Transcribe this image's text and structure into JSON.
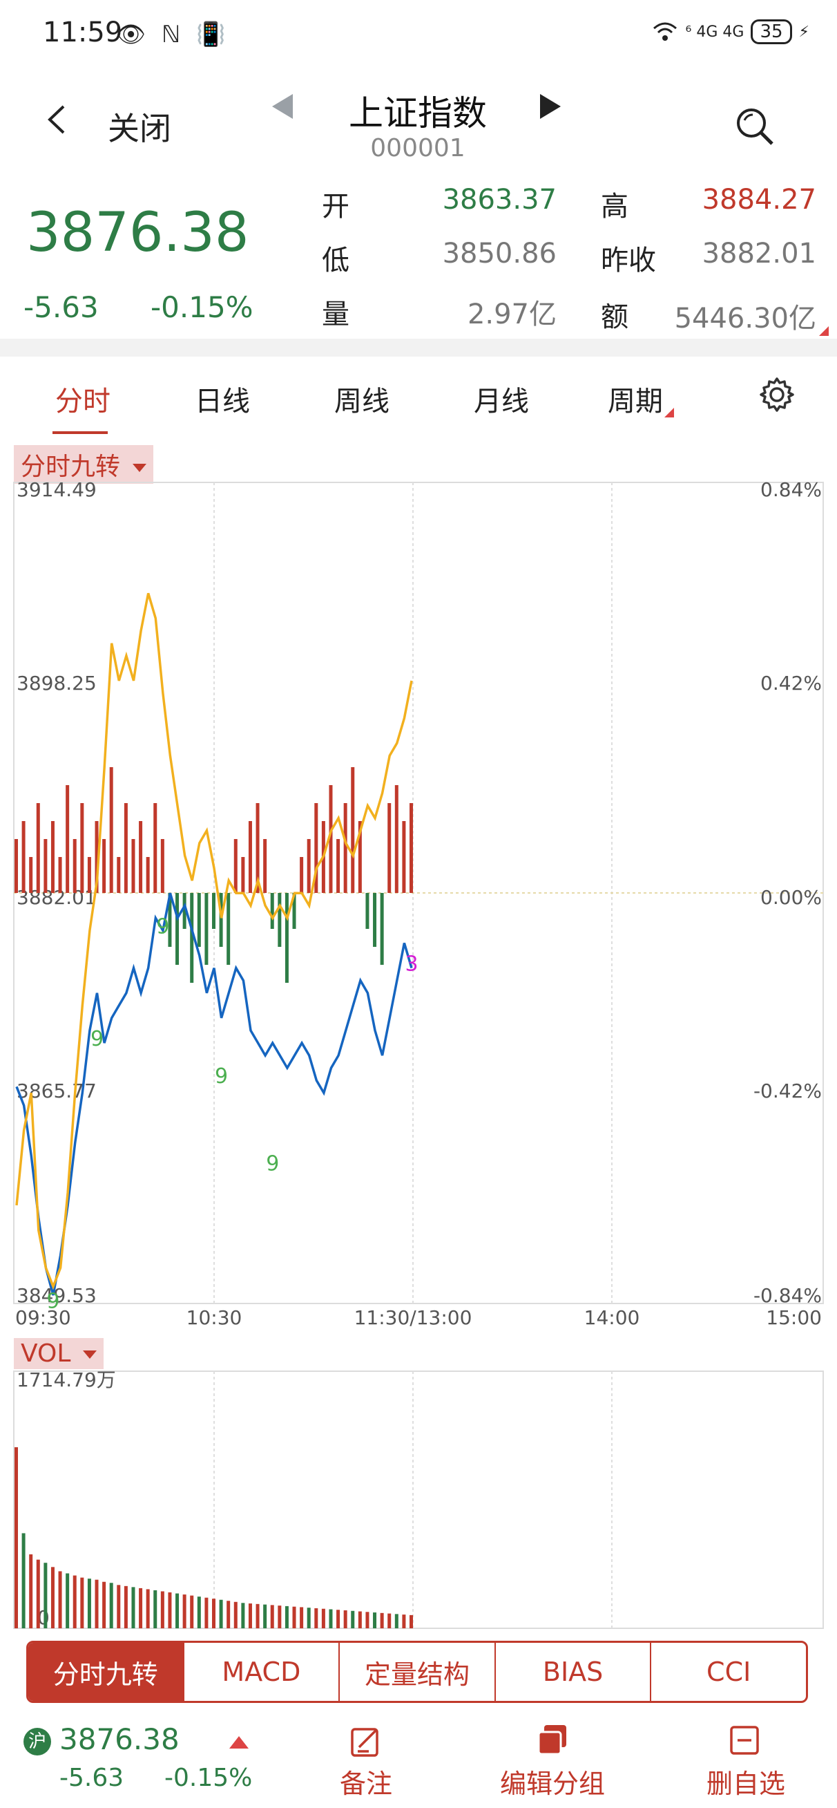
{
  "status_bar": {
    "time": "11:59",
    "left_icons": "👁 ℕ 📳",
    "signal": "⁶ 4G 4G",
    "battery": "35"
  },
  "header": {
    "back_label": "关闭",
    "title": "上证指数",
    "code": "000001"
  },
  "quote": {
    "price": "3876.38",
    "change": "-5.63",
    "change_pct": "-0.15%",
    "open_label": "开",
    "open": "3863.37",
    "high_label": "高",
    "high": "3884.27",
    "low_label": "低",
    "low": "3850.86",
    "prev_label": "昨收",
    "prev": "3882.01",
    "vol_label": "量",
    "vol": "2.97亿",
    "amt_label": "额",
    "amt": "5446.30亿"
  },
  "tabs": [
    "分时",
    "日线",
    "周线",
    "月线",
    "周期"
  ],
  "indicator_chip": "分时九转",
  "vol_chip": "VOL",
  "chart_data": {
    "type": "line",
    "left_ticks": [
      "3914.49",
      "3898.25",
      "3882.01",
      "3865.77",
      "3849.53"
    ],
    "right_ticks": [
      "0.84%",
      "0.42%",
      "0.00%",
      "-0.42%",
      "-0.84%"
    ],
    "x_ticks": [
      "09:30",
      "10:30",
      "11:30/13:00",
      "14:00",
      "15:00"
    ],
    "ylim": [
      3849.53,
      3914.49
    ],
    "prev_close": 3882.01,
    "series": [
      {
        "color": "#1565c0",
        "values": [
          3866.5,
          3865,
          3861,
          3856,
          3852,
          3849.8,
          3853,
          3857,
          3862,
          3866,
          3871,
          3874,
          3870,
          3872,
          3873,
          3874,
          3876,
          3874,
          3876,
          3880,
          3879,
          3882,
          3880,
          3881,
          3879,
          3877,
          3874,
          3876,
          3872,
          3874,
          3876,
          3875,
          3871,
          3870,
          3869,
          3870,
          3869,
          3868,
          3869,
          3870,
          3869,
          3867,
          3866,
          3868,
          3869,
          3871,
          3873,
          3875,
          3874,
          3871,
          3869,
          3872,
          3875,
          3878,
          3876
        ]
      },
      {
        "color": "#f2b01e",
        "values": [
          3857,
          3863,
          3866,
          3855,
          3852,
          3850.5,
          3852,
          3858,
          3866,
          3873,
          3879,
          3883,
          3892,
          3902,
          3899,
          3901,
          3899,
          3903,
          3906,
          3904,
          3898,
          3893,
          3889,
          3885,
          3883,
          3886,
          3887,
          3884,
          3880,
          3883,
          3882,
          3882,
          3881,
          3883,
          3881,
          3880,
          3881,
          3880,
          3882,
          3882,
          3881,
          3884,
          3885,
          3887,
          3888,
          3886,
          3885,
          3887,
          3889,
          3888,
          3890,
          3893,
          3894,
          3896,
          3899
        ]
      }
    ],
    "buy_sell_bars": [
      0.3,
      0.4,
      0.2,
      0.5,
      0.3,
      0.4,
      0.2,
      0.6,
      0.3,
      0.5,
      0.2,
      0.4,
      0.3,
      0.7,
      0.2,
      0.5,
      0.3,
      0.4,
      0.2,
      0.5,
      0.3,
      -0.3,
      -0.4,
      -0.2,
      -0.5,
      -0.3,
      -0.4,
      -0.2,
      -0.3,
      -0.4,
      0.3,
      0.2,
      0.4,
      0.5,
      0.3,
      -0.2,
      -0.3,
      -0.5,
      -0.2,
      0.2,
      0.3,
      0.5,
      0.4,
      0.6,
      0.3,
      0.5,
      0.7,
      0.4,
      -0.2,
      -0.3,
      -0.4,
      0.5,
      0.6,
      0.4,
      0.5
    ],
    "nine_marks": [
      {
        "label": "9",
        "color": "#4caf50",
        "index": 5,
        "value": 3851
      },
      {
        "label": "9",
        "color": "#4caf50",
        "index": 11,
        "value": 3872
      },
      {
        "label": "9",
        "color": "#4caf50",
        "index": 28,
        "value": 3869
      },
      {
        "label": "9",
        "color": "#4caf50",
        "index": 35,
        "value": 3862
      },
      {
        "label": "9",
        "color": "#4caf50",
        "index": 20,
        "value": 3881
      },
      {
        "label": "3",
        "color": "#d41fd4",
        "index": 54,
        "value": 3878
      }
    ],
    "vol_max_label": "1714.79万",
    "vol_zero_label": "0",
    "volume": [
      1714,
      900,
      700,
      650,
      620,
      580,
      540,
      520,
      500,
      480,
      470,
      460,
      440,
      430,
      410,
      400,
      390,
      380,
      370,
      360,
      350,
      340,
      330,
      320,
      310,
      300,
      290,
      280,
      270,
      260,
      250,
      240,
      235,
      230,
      225,
      220,
      215,
      210,
      205,
      200,
      195,
      190,
      185,
      180,
      175,
      170,
      165,
      160,
      155,
      150,
      145,
      140,
      135,
      130,
      125
    ]
  },
  "indicator_tabs": [
    "分时九转",
    "MACD",
    "定量结构",
    "BIAS",
    "CCI"
  ],
  "bottom": {
    "market_badge": "沪",
    "price": "3876.38",
    "change": "-5.63",
    "change_pct": "-0.15%",
    "actions": [
      {
        "label": "备注",
        "icon": "edit-icon"
      },
      {
        "label": "编辑分组",
        "icon": "layers-icon"
      },
      {
        "label": "删自选",
        "icon": "remove-icon"
      }
    ]
  },
  "colors": {
    "up": "#c0392b",
    "down": "#2e7d46",
    "price_line": "#1565c0",
    "avg_line": "#f2b01e"
  }
}
